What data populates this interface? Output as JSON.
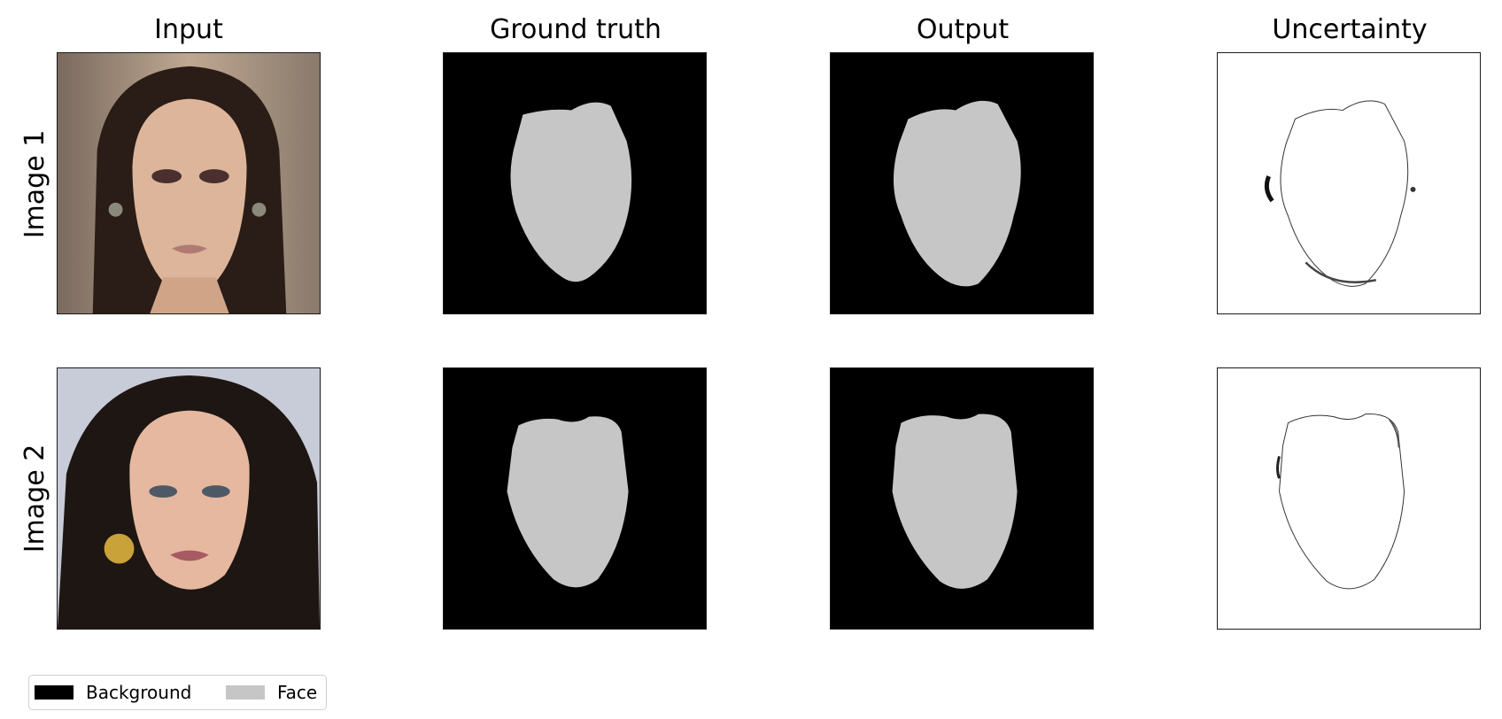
{
  "columns": [
    "Input",
    "Ground truth",
    "Output",
    "Uncertainty"
  ],
  "rows": [
    "Image 1",
    "Image 2"
  ],
  "legend": {
    "items": [
      {
        "label": "Background",
        "color": "#000000"
      },
      {
        "label": "Face",
        "color": "#c6c6c6"
      }
    ]
  },
  "colors": {
    "background": "#000000",
    "face": "#c6c6c6",
    "uncertainty_bg": "#ffffff",
    "uncertainty_line": "#222222"
  }
}
